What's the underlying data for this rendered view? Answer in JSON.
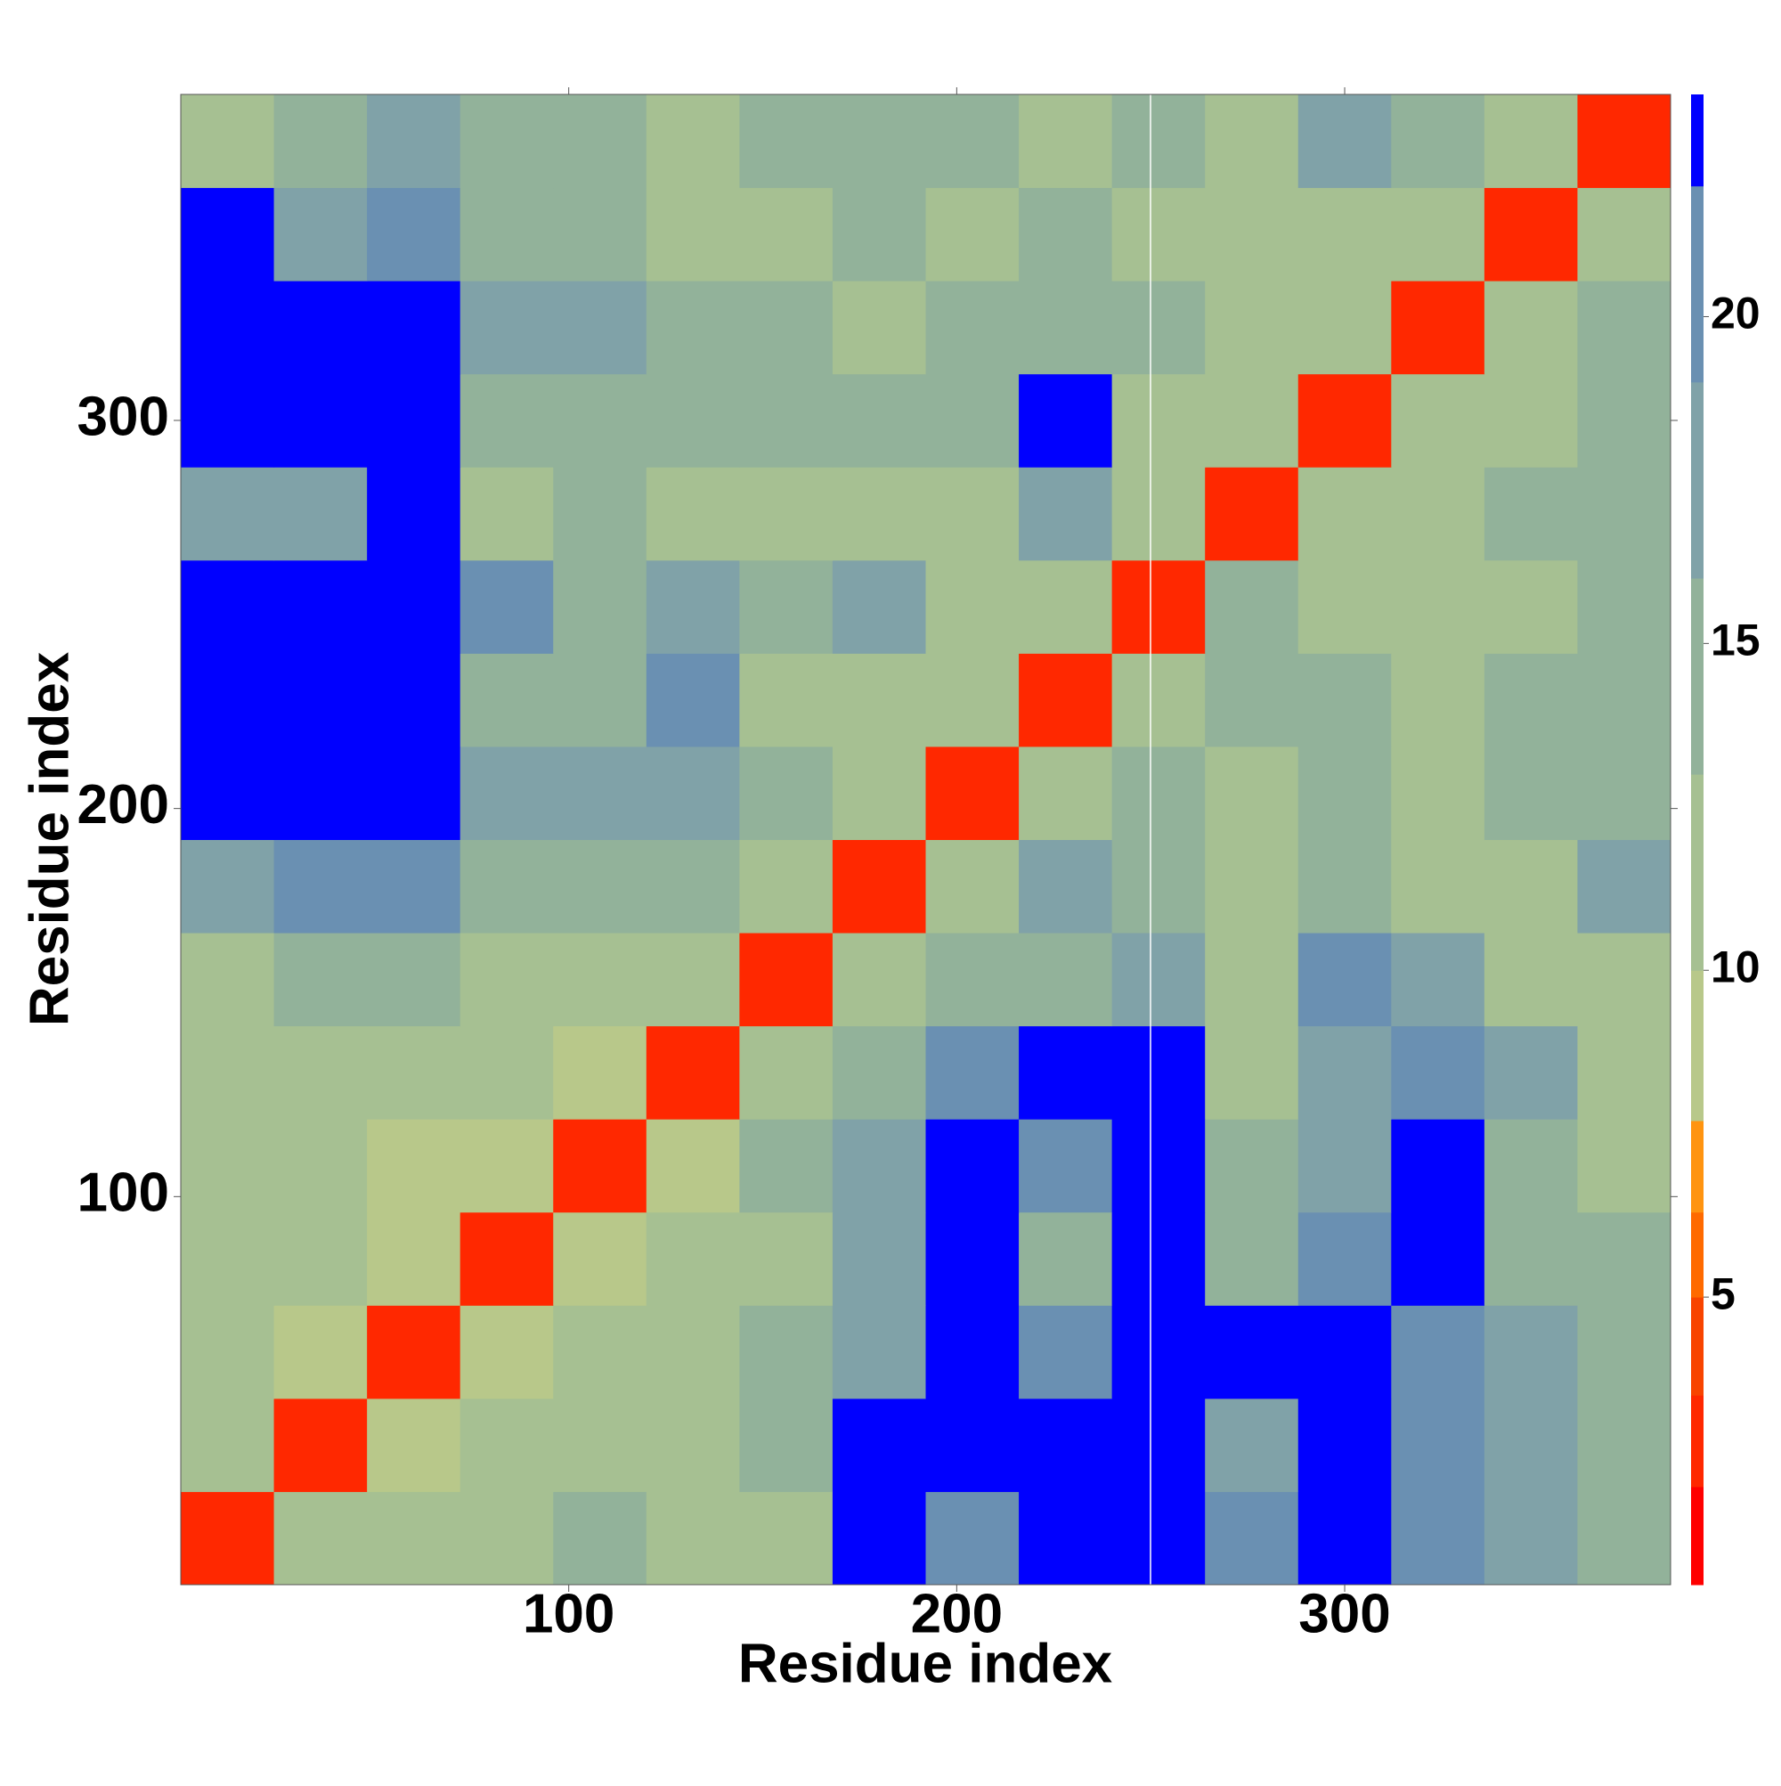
{
  "chart_data": {
    "type": "heatmap",
    "xlabel": "Residue index",
    "ylabel": "Residue index",
    "xbins": [
      0,
      24,
      48,
      72,
      96,
      120,
      144,
      168,
      192,
      216,
      240,
      264,
      288,
      312,
      336,
      360,
      384
    ],
    "ybins": [
      0,
      24,
      48,
      72,
      96,
      120,
      144,
      168,
      192,
      216,
      240,
      264,
      288,
      312,
      336,
      360,
      384
    ],
    "values": [
      [
        3,
        11,
        13,
        13,
        14,
        13,
        12,
        23,
        20,
        23,
        23,
        20,
        23,
        20,
        19,
        14
      ],
      [
        11,
        3,
        10,
        12,
        13,
        13,
        14,
        23,
        23,
        23,
        23,
        19,
        23,
        22,
        19,
        16
      ],
      [
        12,
        10,
        3,
        10,
        12,
        13,
        14,
        19,
        23,
        21,
        23,
        23,
        23,
        20,
        17,
        14
      ],
      [
        12,
        11,
        9,
        3,
        10,
        12,
        13,
        17,
        23,
        16,
        23,
        15,
        20,
        23,
        14,
        14
      ],
      [
        12,
        12,
        10,
        10,
        3,
        9,
        15,
        17,
        23,
        21,
        23,
        15,
        19,
        23,
        16,
        12
      ],
      [
        13,
        12,
        13,
        12,
        9,
        3,
        11,
        15,
        20,
        23,
        23,
        13,
        19,
        20,
        18,
        13
      ],
      [
        12,
        14,
        16,
        12,
        12,
        11,
        3,
        12,
        14,
        16,
        17,
        13,
        20,
        17,
        12,
        13
      ],
      [
        19,
        21,
        20,
        15,
        15,
        14,
        11,
        3,
        11,
        19,
        14,
        13,
        15,
        12,
        12,
        18
      ],
      [
        23,
        23,
        23,
        18,
        17,
        18,
        14,
        11,
        3,
        13,
        14,
        13,
        14,
        13,
        14,
        16
      ],
      [
        23,
        23,
        23,
        14,
        16,
        21,
        13,
        13,
        13,
        3,
        12,
        15,
        14,
        13,
        14,
        15
      ],
      [
        23,
        23,
        23,
        20,
        16,
        19,
        14,
        17,
        13,
        12,
        3,
        14,
        12,
        13,
        13,
        15
      ],
      [
        18,
        17,
        23,
        13,
        15,
        13,
        13,
        13,
        13,
        17,
        12,
        3,
        11,
        13,
        14,
        14
      ],
      [
        23,
        23,
        23,
        16,
        16,
        15,
        15,
        14,
        14,
        23,
        13,
        12,
        3,
        12,
        13,
        15
      ],
      [
        23,
        23,
        23,
        18,
        17,
        15,
        14,
        13,
        14,
        14,
        14,
        13,
        12,
        3,
        13,
        16
      ],
      [
        23,
        18,
        20,
        15,
        14,
        13,
        12,
        14,
        13,
        14,
        12,
        13,
        13,
        11,
        3,
        12
      ],
      [
        13,
        15,
        17,
        15,
        14,
        12,
        14,
        16,
        14,
        13,
        16,
        12,
        18,
        14,
        12,
        3
      ]
    ],
    "xlim": [
      0,
      384
    ],
    "ylim": [
      0,
      384
    ],
    "xticks": [
      100,
      200,
      300
    ],
    "yticks": [
      100,
      200,
      300
    ],
    "colorbar": {
      "zlim": [
        0.6,
        23.4
      ],
      "ticks": [
        5,
        10,
        15,
        20
      ],
      "levels": [
        0.6,
        2.1,
        3.5,
        5,
        6.3,
        7.7,
        10,
        13,
        16,
        19,
        22,
        23.4
      ],
      "colors": [
        "#ff0000",
        "#ff2800",
        "#f84400",
        "#ff6a00",
        "#ff9410",
        "#b8c88a",
        "#a6c092",
        "#92b29a",
        "#80a2a8",
        "#6a90b2",
        "#0000ff"
      ]
    }
  }
}
